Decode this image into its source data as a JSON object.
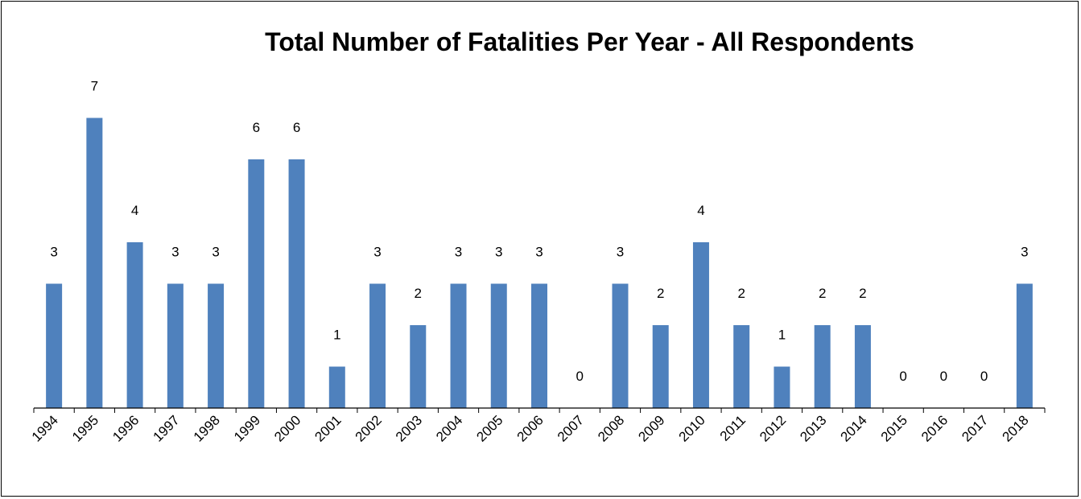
{
  "chart_data": {
    "type": "bar",
    "title": "Total Number of Fatalities Per Year - All Respondents",
    "xlabel": "",
    "ylabel": "",
    "ylim": [
      0,
      7
    ],
    "grid": false,
    "legend": "none",
    "categories": [
      "1994",
      "1995",
      "1996",
      "1997",
      "1998",
      "1999",
      "2000",
      "2001",
      "2002",
      "2003",
      "2004",
      "2005",
      "2006",
      "2007",
      "2008",
      "2009",
      "2010",
      "2011",
      "2012",
      "2013",
      "2014",
      "2015",
      "2016",
      "2017",
      "2018"
    ],
    "values": [
      3,
      7,
      4,
      3,
      3,
      6,
      6,
      1,
      3,
      2,
      3,
      3,
      3,
      0,
      3,
      2,
      4,
      2,
      1,
      2,
      2,
      0,
      0,
      0,
      3
    ],
    "bar_color": "#4F81BD"
  }
}
